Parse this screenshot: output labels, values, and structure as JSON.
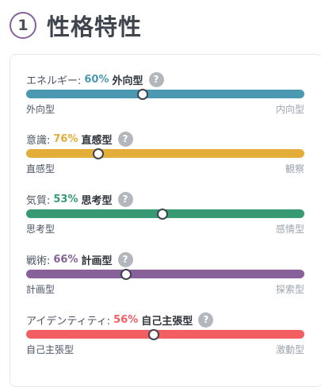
{
  "section": {
    "number": "1",
    "title": "性格特性"
  },
  "traits": [
    {
      "label": "エネルギー:",
      "percent": "60%",
      "type": "外向型",
      "left": "外向型",
      "right": "内向型",
      "color": "#4a98b2",
      "knob_position": 0.42
    },
    {
      "label": "意識:",
      "percent": "76%",
      "type": "直感型",
      "left": "直感型",
      "right": "観察",
      "color": "#e3ad39",
      "knob_position": 0.26
    },
    {
      "label": "気質:",
      "percent": "53%",
      "type": "思考型",
      "left": "思考型",
      "right": "感情型",
      "color": "#389a73",
      "knob_position": 0.49
    },
    {
      "label": "戦術:",
      "percent": "66%",
      "type": "計画型",
      "left": "計画型",
      "right": "探索型",
      "color": "#88619a",
      "knob_position": 0.36
    },
    {
      "label": "アイデンティティ:",
      "percent": "56%",
      "type": "自己主張型",
      "left": "自己主張型",
      "right": "激動型",
      "color": "#f25e62",
      "knob_position": 0.46
    }
  ],
  "help_icon": "?"
}
